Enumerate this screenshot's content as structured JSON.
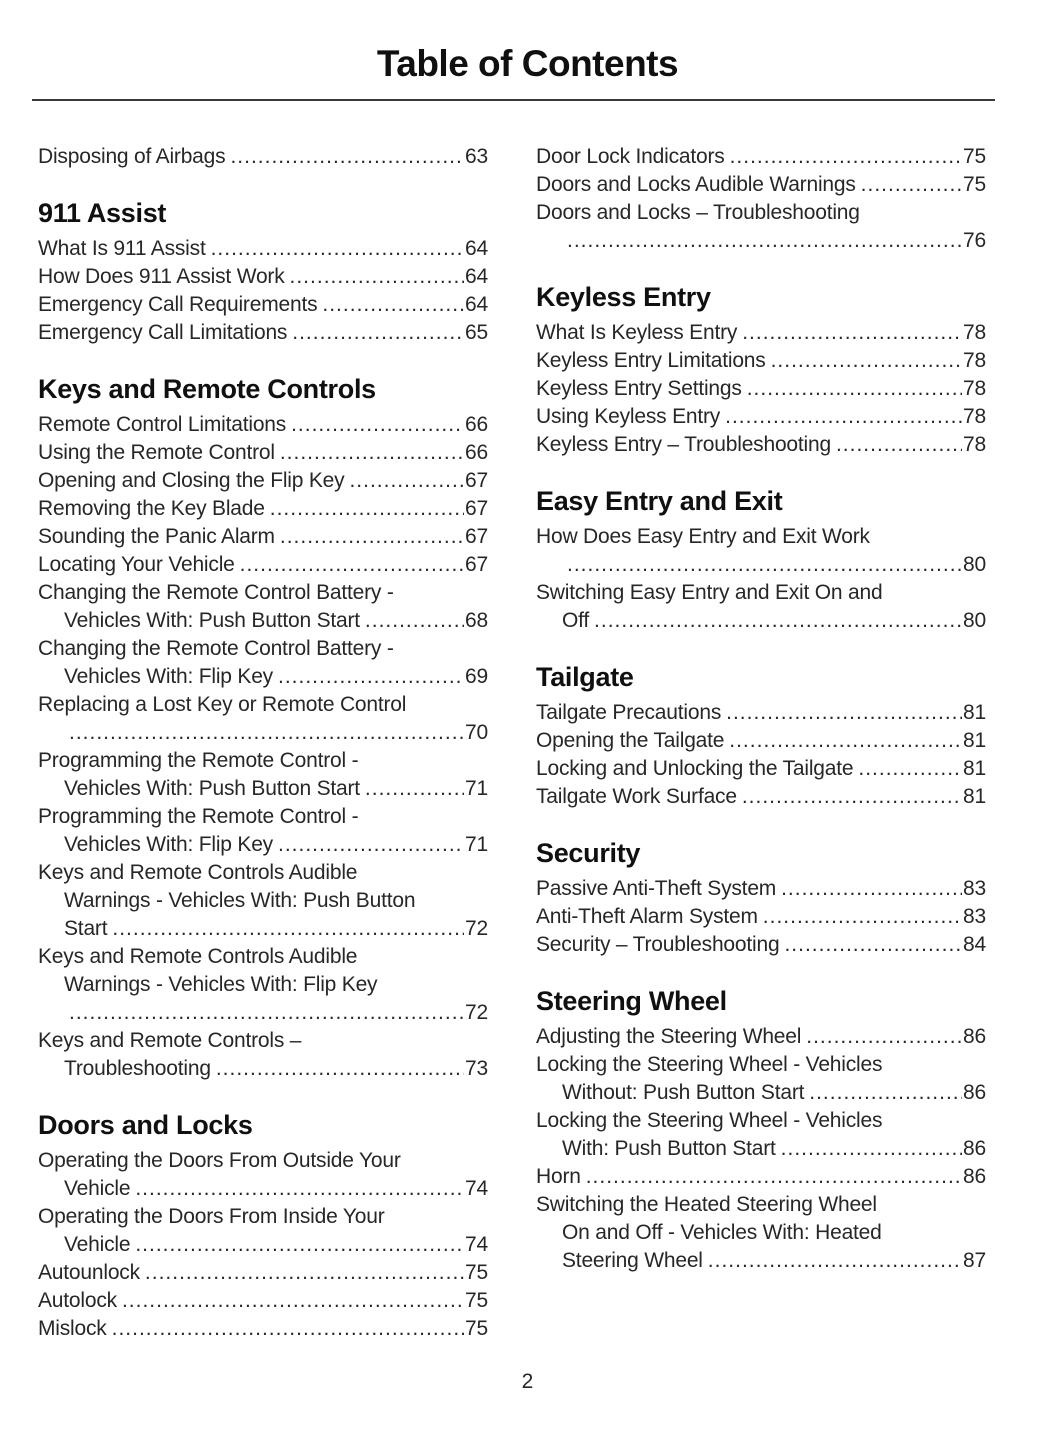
{
  "theme": {
    "text_color": "#272727",
    "heading_color": "#101010",
    "rule_color": "#3a3a3a",
    "background": "#ffffff"
  },
  "leader": {
    "char": "."
  },
  "page": {
    "title": "Table of Contents",
    "folio": "2"
  },
  "columns": [
    {
      "sections": [
        {
          "heading": null,
          "entries": [
            {
              "lines": [
                "Disposing of Airbags"
              ],
              "page": "63"
            }
          ]
        },
        {
          "heading": "911 Assist",
          "entries": [
            {
              "lines": [
                "What Is 911 Assist"
              ],
              "page": "64"
            },
            {
              "lines": [
                "How Does 911 Assist Work"
              ],
              "page": "64"
            },
            {
              "lines": [
                "Emergency Call Requirements"
              ],
              "page": "64"
            },
            {
              "lines": [
                "Emergency Call Limitations"
              ],
              "page": "65"
            }
          ]
        },
        {
          "heading": "Keys and Remote Controls",
          "entries": [
            {
              "lines": [
                "Remote Control Limitations"
              ],
              "page": "66"
            },
            {
              "lines": [
                "Using the Remote Control"
              ],
              "page": "66"
            },
            {
              "lines": [
                "Opening and Closing the Flip Key"
              ],
              "page": "67"
            },
            {
              "lines": [
                "Removing the Key Blade"
              ],
              "page": "67"
            },
            {
              "lines": [
                "Sounding the Panic Alarm"
              ],
              "page": "67"
            },
            {
              "lines": [
                "Locating Your Vehicle"
              ],
              "page": "67"
            },
            {
              "lines": [
                "Changing the Remote Control Battery -",
                "Vehicles With: Push Button Start"
              ],
              "page": "68"
            },
            {
              "lines": [
                "Changing the Remote Control Battery -",
                "Vehicles With: Flip Key"
              ],
              "page": "69"
            },
            {
              "lines": [
                "Replacing a Lost Key or Remote Control",
                ""
              ],
              "page": "70"
            },
            {
              "lines": [
                "Programming the Remote Control -",
                "Vehicles With: Push Button Start"
              ],
              "page": "71"
            },
            {
              "lines": [
                "Programming the Remote Control -",
                "Vehicles With: Flip Key"
              ],
              "page": "71"
            },
            {
              "lines": [
                "Keys and Remote Controls Audible",
                "Warnings - Vehicles With: Push Button",
                "Start"
              ],
              "page": "72"
            },
            {
              "lines": [
                "Keys and Remote Controls Audible",
                "Warnings - Vehicles With: Flip Key",
                ""
              ],
              "page": "72"
            },
            {
              "lines": [
                "Keys and Remote Controls –",
                "Troubleshooting"
              ],
              "page": "73"
            }
          ]
        },
        {
          "heading": "Doors and Locks",
          "entries": [
            {
              "lines": [
                "Operating the Doors From Outside Your",
                "Vehicle"
              ],
              "page": "74"
            },
            {
              "lines": [
                "Operating the Doors From Inside Your",
                "Vehicle"
              ],
              "page": "74"
            },
            {
              "lines": [
                "Autounlock"
              ],
              "page": "75"
            },
            {
              "lines": [
                "Autolock"
              ],
              "page": "75"
            },
            {
              "lines": [
                "Mislock"
              ],
              "page": "75"
            }
          ]
        }
      ]
    },
    {
      "sections": [
        {
          "heading": null,
          "entries": [
            {
              "lines": [
                "Door Lock Indicators"
              ],
              "page": "75"
            },
            {
              "lines": [
                "Doors and Locks Audible Warnings"
              ],
              "page": "75"
            },
            {
              "lines": [
                "Doors and Locks – Troubleshooting",
                ""
              ],
              "page": "76"
            }
          ]
        },
        {
          "heading": "Keyless Entry",
          "entries": [
            {
              "lines": [
                "What Is Keyless Entry"
              ],
              "page": "78"
            },
            {
              "lines": [
                "Keyless Entry Limitations"
              ],
              "page": "78"
            },
            {
              "lines": [
                "Keyless Entry Settings"
              ],
              "page": "78"
            },
            {
              "lines": [
                "Using Keyless Entry"
              ],
              "page": "78"
            },
            {
              "lines": [
                "Keyless Entry – Troubleshooting"
              ],
              "page": "78"
            }
          ]
        },
        {
          "heading": "Easy Entry and Exit",
          "entries": [
            {
              "lines": [
                "How Does Easy Entry and Exit Work",
                ""
              ],
              "page": "80"
            },
            {
              "lines": [
                "Switching Easy Entry and Exit On and",
                "Off"
              ],
              "page": "80"
            }
          ]
        },
        {
          "heading": "Tailgate",
          "entries": [
            {
              "lines": [
                "Tailgate Precautions"
              ],
              "page": "81"
            },
            {
              "lines": [
                "Opening the Tailgate"
              ],
              "page": "81"
            },
            {
              "lines": [
                "Locking and Unlocking the Tailgate"
              ],
              "page": "81"
            },
            {
              "lines": [
                "Tailgate Work Surface"
              ],
              "page": "81"
            }
          ]
        },
        {
          "heading": "Security",
          "entries": [
            {
              "lines": [
                "Passive Anti-Theft System"
              ],
              "page": "83"
            },
            {
              "lines": [
                "Anti-Theft Alarm System"
              ],
              "page": "83"
            },
            {
              "lines": [
                "Security – Troubleshooting"
              ],
              "page": "84"
            }
          ]
        },
        {
          "heading": "Steering Wheel",
          "entries": [
            {
              "lines": [
                "Adjusting the Steering Wheel"
              ],
              "page": "86"
            },
            {
              "lines": [
                "Locking the Steering Wheel - Vehicles",
                "Without: Push Button Start"
              ],
              "page": "86"
            },
            {
              "lines": [
                "Locking the Steering Wheel - Vehicles",
                "With: Push Button Start"
              ],
              "page": "86"
            },
            {
              "lines": [
                "Horn"
              ],
              "page": "86"
            },
            {
              "lines": [
                "Switching the Heated Steering Wheel",
                "On and Off - Vehicles With: Heated",
                "Steering  Wheel"
              ],
              "page": "87"
            }
          ]
        }
      ]
    }
  ]
}
